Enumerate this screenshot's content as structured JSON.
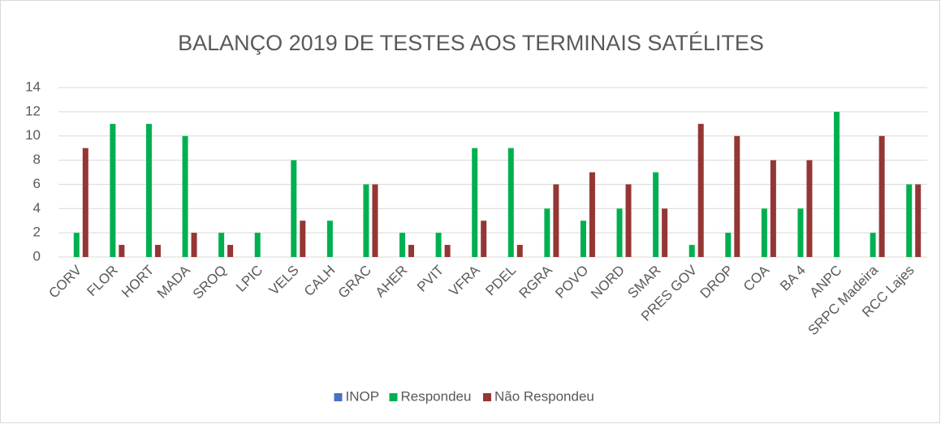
{
  "chart_data": {
    "type": "bar",
    "title": "BALANÇO 2019 DE TESTES AOS TERMINAIS SATÉLITES",
    "categories": [
      "CORV",
      "FLOR",
      "HORT",
      "MADA",
      "SROQ",
      "LPIC",
      "VELS",
      "CALH",
      "GRAC",
      "AHER",
      "PVIT",
      "VFRA",
      "PDEL",
      "RGRA",
      "POVO",
      "NORD",
      "SMAR",
      "PRES GOV",
      "DROP",
      "COA",
      "BA 4",
      "ANPC",
      "SRPC Madeira",
      "RCC Lajes"
    ],
    "series": [
      {
        "name": "INOP",
        "color": "#4472c4",
        "values": [
          0,
          0,
          0,
          0,
          0,
          0,
          0,
          0,
          0,
          0,
          0,
          0,
          0,
          0,
          0,
          0,
          0,
          0,
          0,
          0,
          0,
          0,
          0,
          0
        ]
      },
      {
        "name": "Respondeu",
        "color": "#00b050",
        "values": [
          2,
          11,
          11,
          10,
          2,
          2,
          8,
          3,
          6,
          2,
          2,
          9,
          9,
          4,
          3,
          4,
          7,
          1,
          2,
          4,
          4,
          12,
          2,
          6
        ]
      },
      {
        "name": "Não Respondeu",
        "color": "#943634",
        "values": [
          9,
          1,
          1,
          2,
          1,
          0,
          3,
          0,
          6,
          1,
          1,
          3,
          1,
          6,
          7,
          6,
          4,
          11,
          10,
          8,
          8,
          0,
          10,
          6
        ]
      }
    ],
    "ylim": [
      0,
      14
    ],
    "yticks": [
      0,
      2,
      4,
      6,
      8,
      10,
      12,
      14
    ],
    "grid": true,
    "legend": "bottom"
  }
}
